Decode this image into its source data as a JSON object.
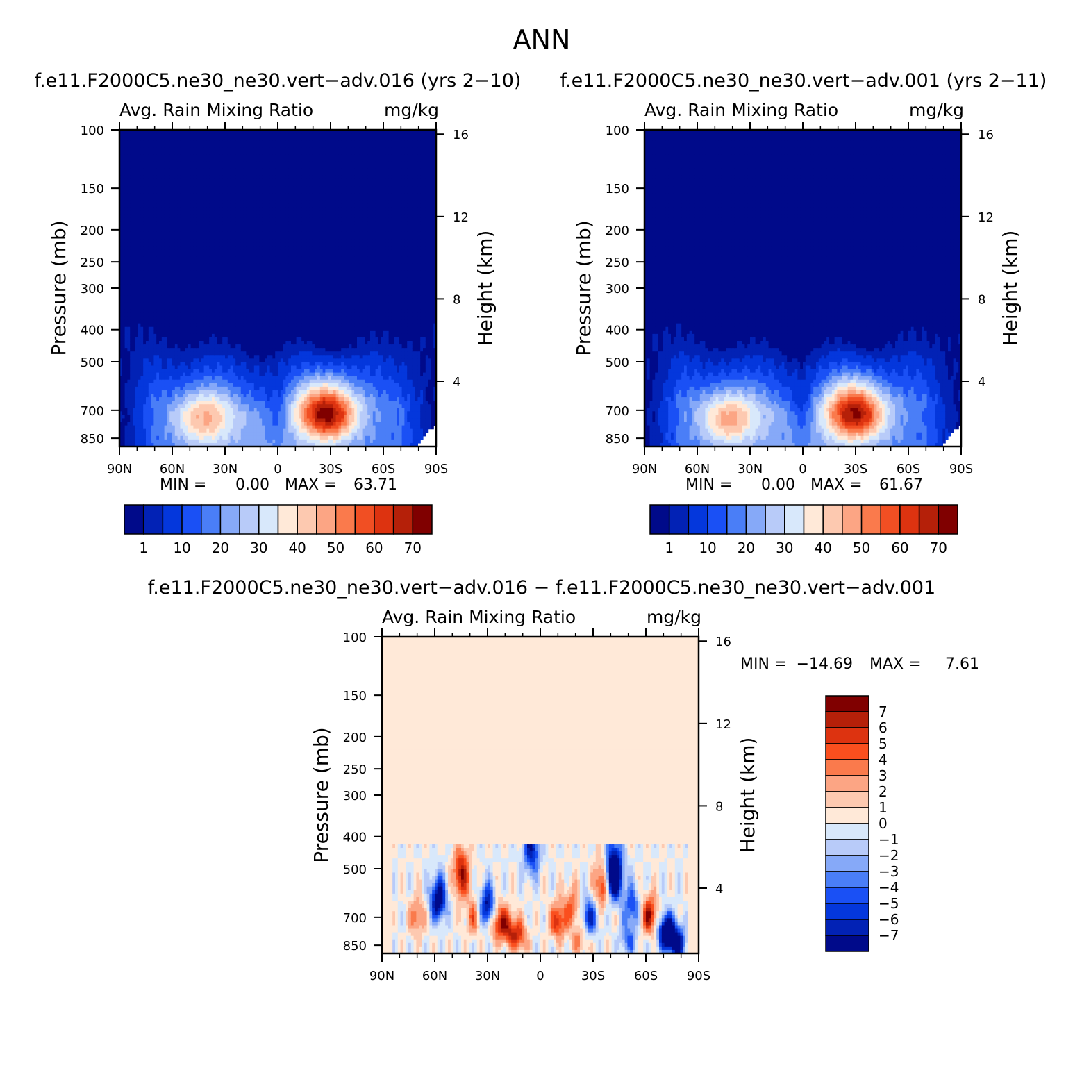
{
  "figure": {
    "title": "ANN"
  },
  "chart_data": [
    {
      "type": "heatmap",
      "title": "f.e11.F2000C5.ne30_ne30.vert−adv.016 (yrs 2−10)",
      "left_label": "Avg. Rain Mixing Ratio",
      "right_label": "mg/kg",
      "ylabel": "Pressure (mb)",
      "y2label": "Height (km)",
      "x_ticks": [
        "90N",
        "60N",
        "30N",
        "0",
        "30S",
        "60S",
        "90S"
      ],
      "y_ticks": [
        "100",
        "150",
        "200",
        "250",
        "300",
        "400",
        "500",
        "700",
        "850"
      ],
      "y2_ticks": [
        "16",
        "12",
        "8",
        "4"
      ],
      "ylim": [
        100,
        900
      ],
      "min_label": "MIN =",
      "min_value": "0.00",
      "max_label": "MAX =",
      "max_value": "63.71",
      "colorbar": {
        "labels": [
          "1",
          "10",
          "20",
          "30",
          "40",
          "50",
          "60",
          "70"
        ],
        "colors": [
          "#000a8a",
          "#0222b5",
          "#0437dc",
          "#1a50f5",
          "#4a7ef7",
          "#86a9f8",
          "#b8cbf9",
          "#d8e8fb",
          "#ffe9d8",
          "#fdc9b0",
          "#fca584",
          "#fa7a4c",
          "#f14f23",
          "#dd3310",
          "#b52009",
          "#800000"
        ]
      },
      "features": [
        {
          "lat": 42,
          "p": 740,
          "peak": 37
        },
        {
          "lat": -28,
          "p": 710,
          "peak": 63.71
        }
      ]
    },
    {
      "type": "heatmap",
      "title": "f.e11.F2000C5.ne30_ne30.vert−adv.001 (yrs 2−11)",
      "left_label": "Avg. Rain Mixing Ratio",
      "right_label": "mg/kg",
      "ylabel": "Pressure (mb)",
      "y2label": "Height (km)",
      "x_ticks": [
        "90N",
        "60N",
        "30N",
        "0",
        "30S",
        "60S",
        "90S"
      ],
      "y_ticks": [
        "100",
        "150",
        "200",
        "250",
        "300",
        "400",
        "500",
        "700",
        "850"
      ],
      "y2_ticks": [
        "16",
        "12",
        "8",
        "4"
      ],
      "ylim": [
        100,
        900
      ],
      "min_label": "MIN =",
      "min_value": "0.00",
      "max_label": "MAX =",
      "max_value": "61.67",
      "colorbar": {
        "labels": [
          "1",
          "10",
          "20",
          "30",
          "40",
          "50",
          "60",
          "70"
        ],
        "colors": [
          "#000a8a",
          "#0222b5",
          "#0437dc",
          "#1a50f5",
          "#4a7ef7",
          "#86a9f8",
          "#b8cbf9",
          "#d8e8fb",
          "#ffe9d8",
          "#fdc9b0",
          "#fca584",
          "#fa7a4c",
          "#f14f23",
          "#dd3310",
          "#b52009",
          "#800000"
        ]
      },
      "features": [
        {
          "lat": 42,
          "p": 740,
          "peak": 38
        },
        {
          "lat": -30,
          "p": 710,
          "peak": 61.67
        }
      ]
    },
    {
      "type": "heatmap",
      "title": "f.e11.F2000C5.ne30_ne30.vert−adv.016 − f.e11.F2000C5.ne30_ne30.vert−adv.001",
      "left_label": "Avg. Rain Mixing Ratio",
      "right_label": "mg/kg",
      "ylabel": "Pressure (mb)",
      "y2label": "Height (km)",
      "x_ticks": [
        "90N",
        "60N",
        "30N",
        "0",
        "30S",
        "60S",
        "90S"
      ],
      "y_ticks": [
        "100",
        "150",
        "200",
        "250",
        "300",
        "400",
        "500",
        "700",
        "850"
      ],
      "y2_ticks": [
        "16",
        "12",
        "8",
        "4"
      ],
      "ylim": [
        100,
        900
      ],
      "min_label": "MIN =",
      "min_value": "−14.69",
      "max_label": "MAX =",
      "max_value": "7.61",
      "colorbar": {
        "labels": [
          "7",
          "6",
          "5",
          "4",
          "3",
          "2",
          "1",
          "0",
          "−1",
          "−2",
          "−3",
          "−4",
          "−5",
          "−6",
          "−7"
        ],
        "colors": [
          "#800000",
          "#b52009",
          "#dd3310",
          "#fa4f1e",
          "#fa7a4c",
          "#fca584",
          "#fdc9b0",
          "#ffe9d8",
          "#d8e8fb",
          "#b8cbf9",
          "#86a9f8",
          "#4a7ef7",
          "#1a50f5",
          "#0437dc",
          "#0222b5",
          "#000a8a"
        ]
      }
    }
  ]
}
